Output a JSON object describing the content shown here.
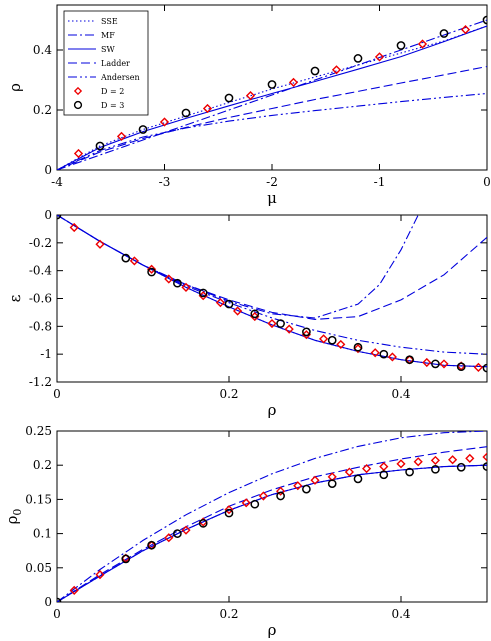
{
  "chart_data": [
    {
      "type": "line",
      "xlabel": "μ",
      "ylabel": "ρ",
      "xlim": [
        -4,
        0
      ],
      "ylim": [
        0,
        0.55
      ],
      "xticks": [
        "-4",
        "-3",
        "-2",
        "-1",
        "0"
      ],
      "yticks": [
        "0",
        "0.2",
        "0.4"
      ],
      "legend": {
        "placement": "top-left",
        "entries": [
          "SSE",
          "MF",
          "SW",
          "Ladder",
          "Andersen",
          "D = 2",
          "D = 3"
        ]
      },
      "series": [
        {
          "name": "SSE",
          "style": "dotted",
          "x": [
            -4,
            -3.6,
            -3.2,
            -2.8,
            -2.4,
            -2,
            -1.6,
            -1.2,
            -0.8,
            -0.4,
            0
          ],
          "y": [
            0,
            0.08,
            0.135,
            0.18,
            0.225,
            0.27,
            0.31,
            0.35,
            0.39,
            0.43,
            0.48
          ]
        },
        {
          "name": "MF",
          "style": "dashdot",
          "x": [
            -4,
            -3.6,
            -3.2,
            -2.8,
            -2.4,
            -2,
            -1.6,
            -1.2,
            -0.8,
            -0.4,
            0
          ],
          "y": [
            0,
            0.05,
            0.1,
            0.15,
            0.2,
            0.25,
            0.3,
            0.35,
            0.4,
            0.45,
            0.5
          ]
        },
        {
          "name": "SW",
          "style": "solid",
          "x": [
            -4,
            -3.6,
            -3.2,
            -2.8,
            -2.4,
            -2,
            -1.6,
            -1.2,
            -0.8,
            -0.4,
            0
          ],
          "y": [
            0,
            0.075,
            0.128,
            0.172,
            0.214,
            0.255,
            0.295,
            0.336,
            0.378,
            0.428,
            0.48
          ]
        },
        {
          "name": "Ladder",
          "style": "dashed",
          "x": [
            -4,
            -3.6,
            -3.2,
            -2.8,
            -2.4,
            -2,
            -1.6,
            -1.2,
            -0.8,
            -0.4,
            0
          ],
          "y": [
            0,
            0.06,
            0.105,
            0.142,
            0.175,
            0.205,
            0.235,
            0.262,
            0.29,
            0.317,
            0.345
          ]
        },
        {
          "name": "Andersen",
          "style": "dashdotdot",
          "x": [
            -4,
            -3.6,
            -3.2,
            -2.8,
            -2.4,
            -2,
            -1.6,
            -1.2,
            -0.8,
            -0.4,
            0
          ],
          "y": [
            0,
            0.065,
            0.11,
            0.14,
            0.163,
            0.182,
            0.198,
            0.213,
            0.228,
            0.242,
            0.255
          ]
        },
        {
          "name": "D = 2",
          "style": "diamond",
          "x": [
            -3.8,
            -3.4,
            -3.0,
            -2.6,
            -2.2,
            -1.8,
            -1.4,
            -1.0,
            -0.6,
            -0.2
          ],
          "y": [
            0.055,
            0.112,
            0.16,
            0.205,
            0.248,
            0.292,
            0.334,
            0.377,
            0.42,
            0.468
          ]
        },
        {
          "name": "D = 3",
          "style": "circle",
          "x": [
            -3.6,
            -3.2,
            -2.8,
            -2.4,
            -2.0,
            -1.6,
            -1.2,
            -0.8,
            -0.4,
            0
          ],
          "y": [
            0.08,
            0.135,
            0.19,
            0.24,
            0.285,
            0.33,
            0.372,
            0.415,
            0.455,
            0.5
          ]
        }
      ]
    },
    {
      "type": "line",
      "xlabel": "ρ",
      "ylabel": "ε",
      "xlim": [
        0,
        0.5
      ],
      "ylim": [
        -1.2,
        0
      ],
      "xticks": [
        "0",
        "0.2",
        "0.4"
      ],
      "yticks": [
        "0",
        "-0.2",
        "-0.4",
        "-0.6",
        "-0.8",
        "-1",
        "-1.2"
      ],
      "series": [
        {
          "name": "SW",
          "style": "solid",
          "x": [
            0,
            0.05,
            0.1,
            0.15,
            0.2,
            0.25,
            0.3,
            0.35,
            0.4,
            0.45,
            0.5
          ],
          "y": [
            0,
            -0.19,
            -0.36,
            -0.52,
            -0.66,
            -0.79,
            -0.9,
            -0.98,
            -1.04,
            -1.08,
            -1.09
          ]
        },
        {
          "name": "SSE",
          "style": "dotted",
          "x": [
            0,
            0.05,
            0.1,
            0.15,
            0.2,
            0.25,
            0.3,
            0.35,
            0.4,
            0.45,
            0.5
          ],
          "y": [
            0,
            -0.19,
            -0.36,
            -0.52,
            -0.66,
            -0.79,
            -0.9,
            -0.98,
            -1.04,
            -1.08,
            -1.09
          ]
        },
        {
          "name": "Andersen",
          "style": "dashdotdot",
          "x": [
            0,
            0.05,
            0.1,
            0.15,
            0.2,
            0.25,
            0.3,
            0.35,
            0.4,
            0.45,
            0.5
          ],
          "y": [
            0,
            -0.19,
            -0.36,
            -0.51,
            -0.63,
            -0.74,
            -0.83,
            -0.9,
            -0.95,
            -0.985,
            -1.0
          ]
        },
        {
          "name": "Ladder",
          "style": "dashed",
          "x": [
            0,
            0.05,
            0.1,
            0.15,
            0.2,
            0.25,
            0.3,
            0.35,
            0.4,
            0.45,
            0.5
          ],
          "y": [
            0,
            -0.19,
            -0.36,
            -0.5,
            -0.61,
            -0.7,
            -0.75,
            -0.73,
            -0.61,
            -0.43,
            -0.16
          ]
        },
        {
          "name": "MF",
          "style": "dashdot",
          "x": [
            0,
            0.05,
            0.1,
            0.15,
            0.2,
            0.25,
            0.3,
            0.35,
            0.375,
            0.4,
            0.42
          ],
          "y": [
            0,
            -0.19,
            -0.36,
            -0.5,
            -0.62,
            -0.71,
            -0.74,
            -0.64,
            -0.5,
            -0.25,
            0.0
          ]
        },
        {
          "name": "D = 2",
          "style": "diamond",
          "x": [
            0.02,
            0.05,
            0.09,
            0.11,
            0.13,
            0.15,
            0.17,
            0.19,
            0.21,
            0.23,
            0.25,
            0.27,
            0.29,
            0.31,
            0.33,
            0.35,
            0.37,
            0.39,
            0.41,
            0.43,
            0.45,
            0.47,
            0.49
          ],
          "y": [
            -0.09,
            -0.21,
            -0.33,
            -0.39,
            -0.46,
            -0.52,
            -0.58,
            -0.63,
            -0.69,
            -0.73,
            -0.78,
            -0.82,
            -0.86,
            -0.89,
            -0.93,
            -0.96,
            -0.99,
            -1.02,
            -1.04,
            -1.06,
            -1.07,
            -1.085,
            -1.095
          ]
        },
        {
          "name": "D = 3",
          "style": "circle",
          "x": [
            0.0,
            0.08,
            0.11,
            0.14,
            0.17,
            0.2,
            0.23,
            0.26,
            0.29,
            0.32,
            0.35,
            0.38,
            0.41,
            0.44,
            0.47,
            0.5
          ],
          "y": [
            0.0,
            -0.31,
            -0.41,
            -0.49,
            -0.56,
            -0.64,
            -0.71,
            -0.78,
            -0.84,
            -0.9,
            -0.95,
            -1.0,
            -1.04,
            -1.07,
            -1.09,
            -1.1
          ]
        }
      ]
    },
    {
      "type": "line",
      "xlabel": "ρ",
      "ylabel": "ρ0",
      "xlim": [
        0,
        0.5
      ],
      "ylim": [
        0,
        0.25
      ],
      "xticks": [
        "0",
        "0.2",
        "0.4"
      ],
      "yticks": [
        "0",
        "0.05",
        "0.1",
        "0.15",
        "0.2",
        "0.25"
      ],
      "series": [
        {
          "name": "MF",
          "style": "dashdot",
          "x": [
            0,
            0.05,
            0.1,
            0.15,
            0.2,
            0.25,
            0.3,
            0.35,
            0.4,
            0.45,
            0.5
          ],
          "y": [
            0,
            0.0475,
            0.09,
            0.1275,
            0.16,
            0.1875,
            0.21,
            0.2275,
            0.24,
            0.2475,
            0.25
          ]
        },
        {
          "name": "Ladder",
          "style": "dashed",
          "x": [
            0,
            0.05,
            0.1,
            0.15,
            0.2,
            0.25,
            0.3,
            0.35,
            0.4,
            0.45,
            0.5
          ],
          "y": [
            0,
            0.04,
            0.077,
            0.11,
            0.14,
            0.164,
            0.183,
            0.197,
            0.209,
            0.219,
            0.227
          ]
        },
        {
          "name": "SW",
          "style": "solid",
          "x": [
            0,
            0.05,
            0.1,
            0.15,
            0.2,
            0.25,
            0.3,
            0.35,
            0.4,
            0.45,
            0.5
          ],
          "y": [
            0,
            0.038,
            0.075,
            0.106,
            0.134,
            0.157,
            0.174,
            0.186,
            0.193,
            0.198,
            0.2
          ]
        },
        {
          "name": "SSE",
          "style": "dotted",
          "x": [
            0,
            0.05,
            0.1,
            0.15,
            0.2,
            0.25,
            0.3,
            0.35,
            0.4,
            0.45,
            0.5
          ],
          "y": [
            0,
            0.038,
            0.075,
            0.106,
            0.134,
            0.157,
            0.174,
            0.186,
            0.193,
            0.198,
            0.2
          ]
        },
        {
          "name": "Andersen",
          "style": "dashdotdot",
          "x": [
            0,
            0.05,
            0.1,
            0.15,
            0.2,
            0.25,
            0.3,
            0.35,
            0.4,
            0.45,
            0.5
          ],
          "y": [
            0,
            0.038,
            0.075,
            0.106,
            0.134,
            0.157,
            0.174,
            0.186,
            0.193,
            0.198,
            0.2
          ]
        },
        {
          "name": "D = 2",
          "style": "diamond",
          "x": [
            0.02,
            0.05,
            0.08,
            0.11,
            0.13,
            0.15,
            0.17,
            0.2,
            0.22,
            0.24,
            0.26,
            0.28,
            0.3,
            0.32,
            0.34,
            0.36,
            0.38,
            0.4,
            0.42,
            0.44,
            0.46,
            0.48,
            0.5
          ],
          "y": [
            0.017,
            0.04,
            0.064,
            0.083,
            0.094,
            0.105,
            0.117,
            0.135,
            0.145,
            0.155,
            0.162,
            0.17,
            0.178,
            0.183,
            0.19,
            0.195,
            0.198,
            0.202,
            0.205,
            0.207,
            0.208,
            0.21,
            0.212
          ]
        },
        {
          "name": "D = 3",
          "style": "circle",
          "x": [
            0.0,
            0.08,
            0.11,
            0.14,
            0.17,
            0.2,
            0.23,
            0.26,
            0.29,
            0.32,
            0.35,
            0.38,
            0.41,
            0.44,
            0.47,
            0.5
          ],
          "y": [
            0.0,
            0.063,
            0.083,
            0.1,
            0.115,
            0.13,
            0.143,
            0.155,
            0.165,
            0.173,
            0.18,
            0.186,
            0.19,
            0.194,
            0.197,
            0.198
          ]
        }
      ]
    }
  ]
}
